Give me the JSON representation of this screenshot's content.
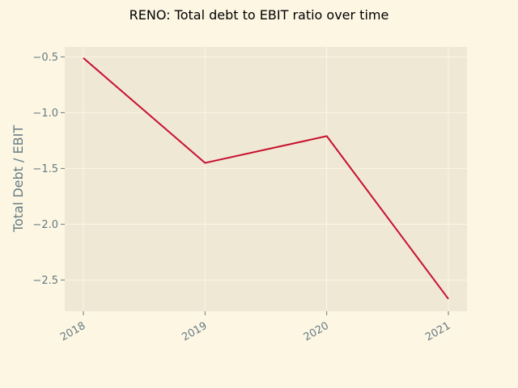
{
  "chart_data": {
    "type": "line",
    "title": "RENO: Total debt to EBIT ratio over time",
    "xlabel": "",
    "ylabel": "Total Debt / EBIT",
    "x": [
      "2018",
      "2019",
      "2020",
      "2021"
    ],
    "x_tick_labels": [
      "2018",
      "2019",
      "2020",
      "2021"
    ],
    "y_ticks": [
      -2.5,
      -2.0,
      -1.5,
      -1.0,
      -0.5
    ],
    "y_tick_labels": [
      "−2.5",
      "−2.0",
      "−1.5",
      "−1.0",
      "−0.5"
    ],
    "ylim": [
      -2.78,
      -0.41
    ],
    "grid": true,
    "series": [
      {
        "values": [
          -0.51,
          -1.45,
          -1.21,
          -2.67
        ],
        "color": "#c8102e"
      }
    ]
  },
  "colors": {
    "page_background": "#fdf6e3",
    "plot_background": "#eee8d5",
    "grid": "#fdf6e3",
    "tick_text": "#657b83",
    "title_text": "#000000",
    "line": "#c8102e"
  }
}
